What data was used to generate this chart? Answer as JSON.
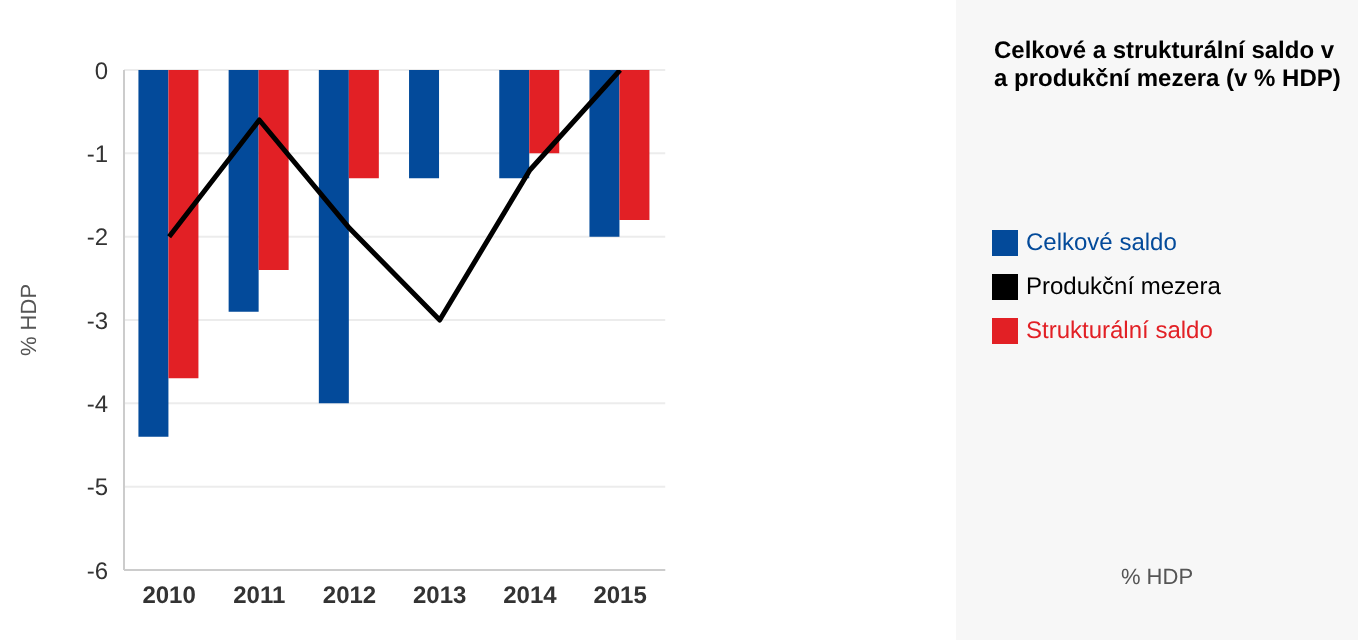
{
  "chart_data": {
    "type": "bar",
    "title": "Celkové a strukturální saldo v a produkční mezera (v % HDP)",
    "ylabel": "% HDP",
    "annotations": [
      "% HDP"
    ],
    "categories": [
      "2010",
      "2011",
      "2012",
      "2013",
      "2014",
      "2015"
    ],
    "series": [
      {
        "name": "Celkové saldo",
        "color": "#034a9a",
        "values": [
          -4.4,
          -2.9,
          -4.0,
          -1.3,
          -1.3,
          -2.0
        ]
      },
      {
        "name": "Strukturální saldo",
        "color": "#e22025",
        "values": [
          -3.7,
          -2.4,
          -1.3,
          null,
          -1.0,
          -1.8
        ]
      },
      {
        "name": "Produkční mezera",
        "type": "line",
        "color": "#000000",
        "values": [
          -2.0,
          -0.6,
          -1.9,
          -3.0,
          -1.2,
          0.0
        ]
      }
    ],
    "ylim": [
      -6,
      0
    ],
    "yticks": [
      -6,
      -5,
      -4,
      -3,
      -2,
      -1,
      0
    ],
    "grid": "y",
    "legend": "right",
    "marker": "none"
  }
}
